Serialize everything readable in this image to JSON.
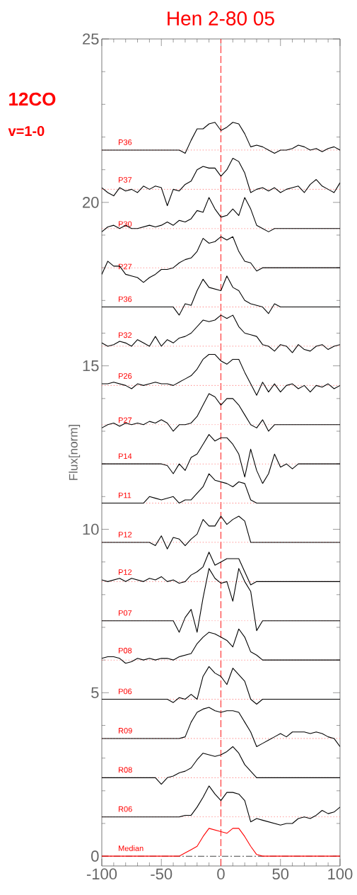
{
  "chart_data": {
    "type": "line",
    "title": "Hen 2-80 05",
    "ylabel": "Flux[norm]",
    "annotations": [
      "12CO",
      "v=1-0"
    ],
    "xlim": [
      -100,
      100
    ],
    "ylim": [
      -0.3,
      25
    ],
    "xticks": [
      -100,
      -50,
      0,
      50,
      100
    ],
    "yticks": [
      0,
      5,
      10,
      15,
      20,
      25
    ],
    "grid": false,
    "marker": "none",
    "line_style": "solid",
    "ref_lines": [
      {
        "axis": "x",
        "value": 0,
        "color": "#ff0000",
        "line_style": "dashed"
      },
      {
        "axis": "y",
        "value": 21.6,
        "color": "#ff6060",
        "line_style": "dotted"
      },
      {
        "axis": "y",
        "value": 20.4,
        "color": "#ff6060",
        "line_style": "dotted"
      },
      {
        "axis": "y",
        "value": 19.2,
        "color": "#ff6060",
        "line_style": "dotted"
      },
      {
        "axis": "y",
        "value": 18.0,
        "color": "#ff6060",
        "line_style": "dotted"
      },
      {
        "axis": "y",
        "value": 16.8,
        "color": "#ff6060",
        "line_style": "dotted"
      },
      {
        "axis": "y",
        "value": 15.6,
        "color": "#ff6060",
        "line_style": "dotted"
      },
      {
        "axis": "y",
        "value": 14.4,
        "color": "#ff6060",
        "line_style": "dotted"
      },
      {
        "axis": "y",
        "value": 13.2,
        "color": "#ff6060",
        "line_style": "dotted"
      },
      {
        "axis": "y",
        "value": 12.0,
        "color": "#ff6060",
        "line_style": "dotted"
      },
      {
        "axis": "y",
        "value": 10.8,
        "color": "#ff6060",
        "line_style": "dotted"
      },
      {
        "axis": "y",
        "value": 9.6,
        "color": "#ff6060",
        "line_style": "dotted"
      },
      {
        "axis": "y",
        "value": 8.4,
        "color": "#ff6060",
        "line_style": "dotted"
      },
      {
        "axis": "y",
        "value": 7.2,
        "color": "#ff6060",
        "line_style": "dotted"
      },
      {
        "axis": "y",
        "value": 6.0,
        "color": "#ff6060",
        "line_style": "dotted"
      },
      {
        "axis": "y",
        "value": 4.8,
        "color": "#ff6060",
        "line_style": "dotted"
      },
      {
        "axis": "y",
        "value": 3.6,
        "color": "#ff6060",
        "line_style": "dotted"
      },
      {
        "axis": "y",
        "value": 2.4,
        "color": "#ff6060",
        "line_style": "dotted"
      },
      {
        "axis": "y",
        "value": 1.2,
        "color": "#ff6060",
        "line_style": "dotted"
      },
      {
        "axis": "y",
        "value": 0,
        "color": "#000000",
        "line_style": "dashdot"
      }
    ],
    "series": [
      {
        "name": "P36",
        "color": "#000000",
        "x": [
          -100,
          -35,
          -30,
          -25,
          -20,
          -15,
          -10,
          -5,
          0,
          5,
          10,
          15,
          20,
          25,
          30,
          35,
          40,
          45,
          50,
          55,
          60,
          65,
          70,
          75,
          80,
          85,
          90,
          95,
          100
        ],
        "values": [
          21.6,
          21.6,
          21.5,
          21.9,
          22.25,
          22.25,
          22.4,
          22.45,
          22.2,
          22.3,
          22.45,
          22.4,
          22.1,
          21.7,
          21.75,
          21.7,
          21.6,
          21.5,
          21.6,
          21.6,
          21.65,
          21.75,
          21.7,
          21.6,
          21.65,
          21.55,
          21.65,
          21.7,
          21.6
        ]
      },
      {
        "name": "P37",
        "color": "#000000",
        "x": [
          -100,
          -95,
          -90,
          -85,
          -80,
          -75,
          -70,
          -65,
          -60,
          -55,
          -50,
          -45,
          -40,
          -35,
          -30,
          -25,
          -20,
          -15,
          -10,
          -5,
          0,
          5,
          10,
          15,
          20,
          25,
          30,
          35,
          40,
          45,
          50,
          55,
          60,
          65,
          70,
          75,
          80,
          85,
          90,
          95,
          100
        ],
        "values": [
          20.45,
          20.3,
          20.2,
          20.45,
          20.35,
          20.4,
          20.3,
          20.5,
          20.4,
          20.5,
          20.45,
          19.9,
          20.4,
          20.35,
          20.55,
          20.65,
          21.0,
          21.1,
          21.05,
          21.05,
          20.8,
          21.0,
          21.35,
          21.25,
          20.9,
          20.3,
          20.4,
          20.45,
          20.35,
          20.45,
          20.3,
          20.4,
          20.45,
          20.5,
          20.3,
          20.55,
          20.7,
          20.5,
          20.4,
          20.3,
          20.6
        ]
      },
      {
        "name": "P30",
        "color": "#000000",
        "x": [
          -100,
          -95,
          -90,
          -85,
          -80,
          -75,
          -70,
          -65,
          -60,
          -55,
          -50,
          -45,
          -40,
          -35,
          -30,
          -25,
          -20,
          -15,
          -10,
          -5,
          0,
          5,
          10,
          15,
          20,
          25,
          30,
          35,
          40,
          45,
          50,
          100
        ],
        "values": [
          19.1,
          19.25,
          19.3,
          19.2,
          19.3,
          19.2,
          19.2,
          19.25,
          19.3,
          19.25,
          19.3,
          19.4,
          19.3,
          19.45,
          19.4,
          19.5,
          19.75,
          19.7,
          20.15,
          19.8,
          19.55,
          19.6,
          19.8,
          19.6,
          20.15,
          19.8,
          19.3,
          19.2,
          19.1,
          19.2,
          19.2,
          19.2
        ]
      },
      {
        "name": "P27",
        "color": "#000000",
        "x": [
          -100,
          -95,
          -90,
          -85,
          -80,
          -75,
          -70,
          -65,
          -60,
          -55,
          -50,
          -45,
          -40,
          -35,
          -30,
          -25,
          -20,
          -15,
          -10,
          -5,
          0,
          5,
          10,
          15,
          20,
          25,
          30,
          35,
          100
        ],
        "values": [
          17.8,
          18.2,
          18.05,
          18.05,
          17.8,
          17.75,
          17.7,
          17.55,
          17.7,
          17.8,
          17.95,
          17.95,
          18.0,
          18.15,
          18.25,
          18.3,
          18.5,
          18.9,
          18.75,
          18.8,
          18.95,
          18.85,
          18.95,
          18.5,
          18.2,
          18.15,
          17.9,
          18.0,
          18.0
        ]
      },
      {
        "name": "P36",
        "color": "#000000",
        "x": [
          -100,
          -40,
          -35,
          -30,
          -25,
          -20,
          -15,
          -10,
          -5,
          0,
          5,
          10,
          15,
          20,
          25,
          30,
          35,
          40,
          45,
          50,
          100
        ],
        "values": [
          16.8,
          16.8,
          16.55,
          16.9,
          16.85,
          17.3,
          17.65,
          17.4,
          17.35,
          17.3,
          17.75,
          17.4,
          17.3,
          17.0,
          16.9,
          16.85,
          16.8,
          16.6,
          16.9,
          16.8,
          16.8
        ]
      },
      {
        "name": "P32",
        "color": "#000000",
        "x": [
          -100,
          -95,
          -90,
          -85,
          -80,
          -75,
          -70,
          -65,
          -60,
          -55,
          -50,
          -45,
          -40,
          -35,
          -30,
          -25,
          -20,
          -15,
          -10,
          -5,
          0,
          5,
          10,
          15,
          20,
          25,
          30,
          35,
          40,
          45,
          50,
          55,
          60,
          65,
          70,
          75,
          80,
          85,
          90,
          95,
          100
        ],
        "values": [
          15.7,
          15.6,
          15.65,
          15.75,
          15.7,
          15.6,
          15.8,
          15.7,
          15.6,
          15.9,
          15.6,
          15.8,
          15.7,
          15.85,
          15.9,
          16.0,
          16.2,
          16.4,
          16.35,
          16.4,
          16.55,
          16.45,
          16.55,
          16.2,
          16.0,
          15.95,
          15.9,
          15.65,
          15.6,
          15.45,
          15.65,
          15.6,
          15.4,
          15.65,
          15.5,
          15.45,
          15.6,
          15.65,
          15.5,
          15.6,
          15.65
        ]
      },
      {
        "name": "P26",
        "color": "#000000",
        "x": [
          -100,
          -95,
          -90,
          -85,
          -80,
          -75,
          -70,
          -65,
          -60,
          -55,
          -50,
          -45,
          -40,
          -35,
          -30,
          -25,
          -20,
          -15,
          -10,
          -5,
          0,
          5,
          10,
          15,
          20,
          25,
          30,
          35,
          40,
          45,
          50,
          55,
          60,
          65,
          70,
          75,
          80,
          85,
          90,
          95,
          100
        ],
        "values": [
          14.45,
          14.45,
          14.5,
          14.45,
          14.4,
          14.3,
          14.45,
          14.4,
          14.45,
          14.5,
          14.45,
          14.45,
          14.4,
          14.5,
          14.6,
          14.7,
          14.9,
          15.2,
          15.35,
          15.35,
          15.15,
          15.05,
          15.2,
          15.2,
          14.8,
          14.45,
          14.1,
          14.5,
          14.2,
          14.45,
          14.2,
          14.4,
          14.45,
          14.3,
          14.4,
          14.2,
          14.4,
          14.35,
          14.45,
          14.3,
          14.4
        ]
      },
      {
        "name": "P27",
        "color": "#000000",
        "x": [
          -100,
          -95,
          -90,
          -85,
          -80,
          -75,
          -70,
          -65,
          -60,
          -55,
          -50,
          -45,
          -40,
          -35,
          -30,
          -25,
          -20,
          -15,
          -10,
          -5,
          0,
          5,
          10,
          15,
          20,
          25,
          30,
          35,
          40,
          45,
          100
        ],
        "values": [
          13.1,
          13.2,
          13.25,
          13.15,
          13.25,
          13.2,
          13.25,
          13.2,
          13.3,
          13.25,
          13.35,
          13.25,
          13.0,
          13.2,
          13.2,
          13.25,
          13.45,
          13.8,
          14.15,
          14.05,
          13.8,
          14.0,
          14.0,
          13.8,
          13.5,
          13.2,
          13.1,
          13.35,
          13.0,
          13.2,
          13.2
        ]
      },
      {
        "name": "P14",
        "color": "#000000",
        "x": [
          -100,
          -50,
          -45,
          -40,
          -35,
          -30,
          -25,
          -20,
          -15,
          -10,
          -5,
          0,
          5,
          10,
          15,
          20,
          25,
          30,
          35,
          40,
          45,
          50,
          55,
          60,
          65,
          70,
          100
        ],
        "values": [
          12.0,
          12.0,
          11.95,
          11.7,
          12.0,
          11.8,
          12.2,
          12.3,
          12.6,
          12.9,
          12.7,
          12.8,
          12.8,
          12.6,
          12.3,
          11.6,
          12.45,
          11.8,
          11.4,
          11.7,
          12.3,
          11.9,
          12.0,
          11.85,
          12.0,
          12.0,
          12.0
        ]
      },
      {
        "name": "P11",
        "color": "#000000",
        "x": [
          -100,
          -65,
          -60,
          -55,
          -50,
          -45,
          -40,
          -35,
          -30,
          -25,
          -20,
          -15,
          -10,
          -5,
          0,
          5,
          10,
          15,
          20,
          25,
          30,
          100
        ],
        "values": [
          10.8,
          10.8,
          11.0,
          10.95,
          10.9,
          10.95,
          11.0,
          10.8,
          10.9,
          10.9,
          11.1,
          11.3,
          11.7,
          11.5,
          11.45,
          11.4,
          11.3,
          11.45,
          11.4,
          10.9,
          10.8,
          10.8
        ]
      },
      {
        "name": "P12",
        "color": "#000000",
        "x": [
          -100,
          -60,
          -55,
          -50,
          -45,
          -40,
          -35,
          -30,
          -25,
          -20,
          -15,
          -10,
          -5,
          0,
          5,
          10,
          15,
          20,
          25,
          30,
          100
        ],
        "values": [
          9.6,
          9.6,
          9.5,
          9.8,
          9.4,
          9.75,
          9.7,
          9.5,
          9.7,
          9.85,
          10.3,
          10.1,
          10.1,
          10.4,
          10.15,
          10.3,
          10.4,
          10.25,
          9.6,
          9.6,
          9.6
        ]
      },
      {
        "name": "P12",
        "color": "#000000",
        "x": [
          -100,
          -95,
          -90,
          -85,
          -80,
          -75,
          -70,
          -65,
          -60,
          -55,
          -50,
          -45,
          -40,
          -35,
          -30,
          -25,
          -20,
          -15,
          -10,
          -5,
          0,
          5,
          10,
          15,
          20,
          25,
          30,
          100
        ],
        "values": [
          8.45,
          8.4,
          8.45,
          8.5,
          8.4,
          8.5,
          8.45,
          8.4,
          8.5,
          8.45,
          8.55,
          8.4,
          8.45,
          8.35,
          8.4,
          8.6,
          8.7,
          8.85,
          9.3,
          8.9,
          9.0,
          9.1,
          9.1,
          9.1,
          8.7,
          8.3,
          8.4,
          8.4
        ]
      },
      {
        "name": "P07",
        "color": "#000000",
        "x": [
          -100,
          -40,
          -35,
          -30,
          -25,
          -20,
          -15,
          -10,
          -5,
          0,
          5,
          10,
          15,
          20,
          25,
          30,
          35,
          100
        ],
        "values": [
          7.2,
          7.2,
          6.85,
          7.3,
          7.55,
          6.85,
          7.9,
          8.8,
          8.5,
          8.35,
          8.4,
          7.8,
          8.8,
          8.4,
          8.1,
          6.9,
          7.2,
          7.2
        ]
      },
      {
        "name": "P08",
        "color": "#000000",
        "x": [
          -100,
          -95,
          -90,
          -85,
          -80,
          -75,
          -70,
          -65,
          -60,
          -55,
          -50,
          -45,
          -40,
          -35,
          -30,
          -25,
          -20,
          -15,
          -10,
          -5,
          0,
          5,
          10,
          15,
          20,
          25,
          30,
          35,
          100
        ],
        "values": [
          6.05,
          6.1,
          6.1,
          6.05,
          5.9,
          5.95,
          6.05,
          6.0,
          6.05,
          6.0,
          6.05,
          6.05,
          6.0,
          6.1,
          6.15,
          6.2,
          6.5,
          6.7,
          6.85,
          6.8,
          6.7,
          6.6,
          6.4,
          6.95,
          6.7,
          6.25,
          6.15,
          6.0,
          6.0
        ]
      },
      {
        "name": "P06",
        "color": "#000000",
        "x": [
          -100,
          -45,
          -40,
          -35,
          -30,
          -25,
          -20,
          -15,
          -10,
          -5,
          0,
          5,
          10,
          15,
          20,
          25,
          30,
          35,
          100
        ],
        "values": [
          4.8,
          4.8,
          4.7,
          4.85,
          4.8,
          4.95,
          4.8,
          5.5,
          5.8,
          5.6,
          5.5,
          5.25,
          5.75,
          5.55,
          5.35,
          4.8,
          4.65,
          4.8,
          4.8
        ]
      },
      {
        "name": "R09",
        "color": "#000000",
        "x": [
          -100,
          -35,
          -30,
          -25,
          -20,
          -15,
          -10,
          -5,
          0,
          5,
          10,
          15,
          20,
          25,
          30,
          35,
          40,
          45,
          50,
          55,
          60,
          65,
          70,
          75,
          80,
          85,
          90,
          95,
          100
        ],
        "values": [
          3.6,
          3.6,
          3.65,
          4.1,
          4.4,
          4.5,
          4.55,
          4.45,
          4.4,
          4.45,
          4.45,
          4.4,
          4.1,
          3.8,
          3.35,
          3.45,
          3.55,
          3.65,
          3.75,
          3.65,
          3.8,
          3.8,
          3.8,
          3.75,
          3.8,
          3.75,
          3.65,
          3.6,
          3.35
        ]
      },
      {
        "name": "R08",
        "color": "#000000",
        "x": [
          -100,
          -55,
          -50,
          -45,
          -40,
          -35,
          -30,
          -25,
          -20,
          -15,
          -10,
          -5,
          0,
          5,
          10,
          15,
          20,
          25,
          30,
          100
        ],
        "values": [
          2.4,
          2.4,
          2.2,
          2.4,
          2.45,
          2.55,
          2.6,
          2.7,
          2.95,
          3.15,
          3.1,
          3.05,
          3.1,
          3.2,
          3.35,
          3.15,
          2.8,
          2.6,
          2.4,
          2.4
        ]
      },
      {
        "name": "R06",
        "color": "#000000",
        "x": [
          -100,
          -35,
          -30,
          -25,
          -20,
          -15,
          -10,
          -5,
          0,
          5,
          10,
          15,
          20,
          25,
          30,
          35,
          40,
          45,
          50,
          55,
          60,
          65,
          70,
          75,
          80,
          85,
          90,
          95,
          100
        ],
        "values": [
          1.2,
          1.2,
          1.25,
          1.25,
          1.5,
          1.8,
          2.15,
          1.9,
          1.7,
          1.95,
          1.95,
          1.9,
          1.7,
          1.05,
          1.15,
          1.1,
          1.05,
          1.0,
          0.95,
          1.0,
          1.0,
          1.15,
          1.2,
          1.15,
          1.25,
          1.4,
          1.3,
          1.35,
          1.5
        ]
      },
      {
        "name": "Median",
        "color": "#ff0000",
        "x": [
          -100,
          -35,
          -30,
          -25,
          -20,
          -15,
          -10,
          -5,
          0,
          5,
          10,
          15,
          20,
          25,
          30,
          35,
          100
        ],
        "values": [
          0,
          0,
          0.1,
          0.2,
          0.3,
          0.6,
          0.85,
          0.8,
          0.75,
          0.7,
          0.85,
          0.85,
          0.6,
          0.3,
          0.05,
          0,
          0
        ]
      }
    ]
  }
}
